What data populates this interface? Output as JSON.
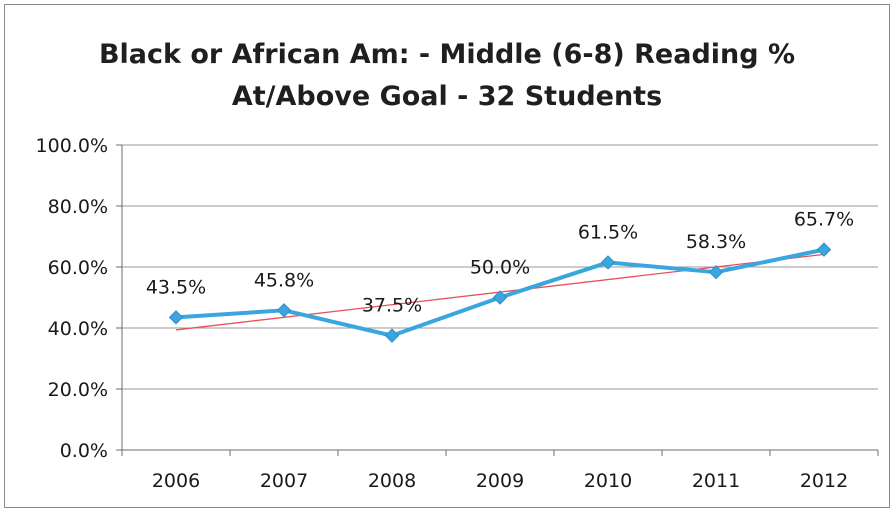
{
  "chart_data": {
    "type": "line",
    "title_line1": "Black or African Am:  -  Middle (6-8) Reading %",
    "title_line2": "At/Above Goal  - 32 Students",
    "xlabel": "",
    "ylabel": "",
    "categories": [
      "2006",
      "2007",
      "2008",
      "2009",
      "2010",
      "2011",
      "2012"
    ],
    "series": [
      {
        "values": [
          43.5,
          45.8,
          37.5,
          50.0,
          61.5,
          58.3,
          65.7
        ],
        "labels": [
          "43.5%",
          "45.8%",
          "37.5%",
          "50.0%",
          "61.5%",
          "58.3%",
          "65.7%"
        ],
        "color": "#3aa6e0",
        "marker": "diamond"
      }
    ],
    "trendline": {
      "type": "linear",
      "color": "#e8505b"
    },
    "ylim": [
      0,
      100
    ],
    "yticks": [
      "0.0%",
      "20.0%",
      "40.0%",
      "60.0%",
      "80.0%",
      "100.0%"
    ],
    "grid": true,
    "legend": "none"
  }
}
